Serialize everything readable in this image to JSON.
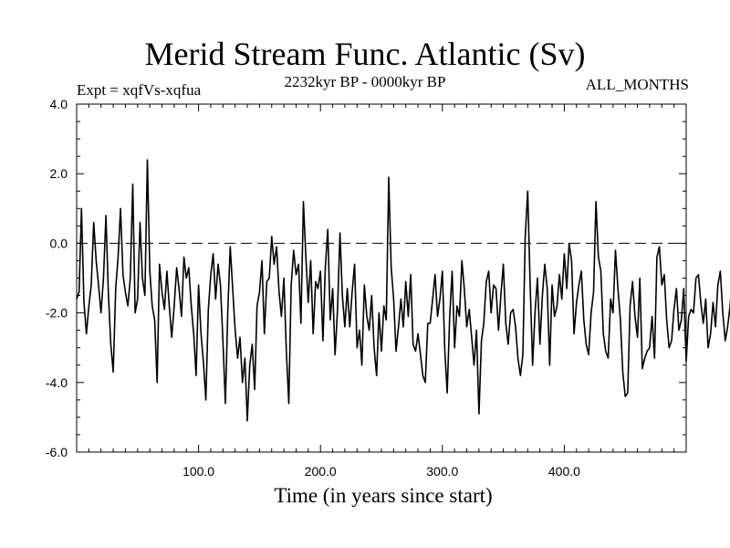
{
  "chart_data": {
    "type": "line",
    "title": "Merid Stream Func. Atlantic (Sv)",
    "subtitle_left": "Expt = xqfVs-xqfua",
    "subtitle_center": "2232kyr BP - 0000kyr BP",
    "subtitle_right": "ALL_MONTHS",
    "xlabel": "Time (in years since start)",
    "ylabel": "",
    "xlim": [
      0,
      500
    ],
    "ylim": [
      -6.0,
      4.0
    ],
    "x_ticks": [
      100,
      200,
      300,
      400
    ],
    "x_tick_labels": [
      "100.0",
      "200.0",
      "300.0",
      "400.0"
    ],
    "y_ticks": [
      -6,
      -4,
      -2,
      0,
      2,
      4
    ],
    "y_tick_labels": [
      "-6.0",
      "-4.0",
      "-2.0",
      "0.0",
      "2.0",
      "4.0"
    ],
    "reference_line": {
      "y": 0.0,
      "style": "dashed"
    },
    "series": [
      {
        "name": "xqfVs-xqfua",
        "x_start": 0,
        "x_step": 2,
        "values": [
          -1.6,
          -1.4,
          1.0,
          -1.7,
          -2.6,
          -1.8,
          -1.2,
          0.6,
          -0.5,
          -1.2,
          -2.0,
          -1.0,
          0.8,
          -1.4,
          -2.9,
          -3.7,
          -1.3,
          -0.4,
          1.0,
          -0.9,
          -1.4,
          -1.8,
          -1.0,
          1.7,
          -2.0,
          -1.6,
          0.6,
          -1.0,
          -1.5,
          2.4,
          -0.8,
          -1.8,
          -2.2,
          -4.0,
          -0.6,
          -1.4,
          -1.9,
          -0.8,
          -1.8,
          -2.7,
          -1.8,
          -0.7,
          -1.3,
          -2.1,
          -0.4,
          -1.0,
          -0.7,
          -1.8,
          -2.6,
          -3.8,
          -1.2,
          -2.6,
          -3.4,
          -4.5,
          -1.9,
          -0.9,
          -0.3,
          -1.6,
          -0.6,
          -1.2,
          -2.8,
          -4.6,
          -1.9,
          -0.1,
          -1.3,
          -2.5,
          -3.3,
          -2.7,
          -4.0,
          -3.3,
          -5.1,
          -3.5,
          -2.9,
          -4.2,
          -1.8,
          -1.4,
          -0.5,
          -2.6,
          -1.1,
          -1.0,
          0.2,
          -0.6,
          -0.1,
          -1.4,
          -2.1,
          -1.0,
          -3.1,
          -4.6,
          -1.2,
          -0.2,
          -0.9,
          -0.6,
          -2.3,
          1.2,
          -0.4,
          -1.7,
          -0.5,
          -2.6,
          -1.1,
          -1.3,
          -0.8,
          -2.8,
          -0.7,
          0.4,
          -2.2,
          -1.3,
          -3.2,
          -1.9,
          0.3,
          -1.5,
          -2.4,
          -1.3,
          -2.4,
          -1.4,
          -0.6,
          -3.0,
          -2.5,
          -3.5,
          -1.2,
          -2.1,
          -2.5,
          -1.5,
          -3.0,
          -3.8,
          -2.0,
          -3.1,
          -1.8,
          -2.2,
          1.9,
          -0.7,
          -1.6,
          -3.1,
          -2.4,
          -1.6,
          -2.4,
          -1.1,
          -2.1,
          -0.9,
          -2.9,
          -3.1,
          -2.6,
          -3.2,
          -3.8,
          -4.0,
          -2.3,
          -2.3,
          -1.6,
          -0.9,
          -2.1,
          -1.6,
          -0.8,
          -3.1,
          -4.3,
          -2.1,
          -0.8,
          -3.0,
          -1.8,
          -2.1,
          -0.5,
          -1.3,
          -2.4,
          -1.9,
          -2.7,
          -3.5,
          -2.5,
          -4.9,
          -2.8,
          -2.3,
          -1.1,
          -0.8,
          -2.0,
          -1.2,
          -1.3,
          -2.5,
          -1.5,
          -0.6,
          -2.3,
          -2.9,
          -2.0,
          -1.9,
          -2.4,
          -3.3,
          -3.8,
          -3.2,
          0.2,
          1.5,
          -1.2,
          -3.5,
          -2.0,
          -1.0,
          -2.9,
          -1.5,
          -0.6,
          -1.3,
          -3.5,
          -1.2,
          -2.1,
          -1.8,
          -0.9,
          -1.6,
          -0.3,
          -1.3,
          0.0,
          -0.5,
          -2.6,
          -1.7,
          -1.2,
          -0.8,
          -2.2,
          -2.9,
          -3.2,
          -2.0,
          -1.4,
          1.2,
          -0.4,
          -0.8,
          -2.6,
          -3.1,
          -3.3,
          -1.6,
          -2.0,
          -0.2,
          -1.3,
          -2.2,
          -3.7,
          -4.4,
          -4.3,
          -1.8,
          -1.1,
          -2.1,
          -2.7,
          -1.0,
          -3.6,
          -3.3,
          -3.1,
          -3.0,
          -2.1,
          -3.3,
          -0.4,
          -0.1,
          -1.2,
          -0.9,
          -2.2,
          -3.0,
          -2.8,
          -1.9,
          -1.3,
          -2.5,
          -2.2,
          -1.3,
          -3.4,
          -2.1,
          -1.9,
          -2.0,
          -1.0,
          -0.9,
          -1.7,
          -2.3,
          -1.6,
          -3.0,
          -2.6,
          -1.7,
          -2.4,
          -1.2,
          -0.8,
          -2.0,
          -2.8,
          -2.4,
          -1.8,
          -0.7,
          -3.4,
          -2.6,
          -1.7,
          -2.5,
          -2.4,
          -1.6,
          -1.6,
          -3.7,
          -2.2,
          -2.3,
          -2.1,
          -1.5,
          -2.8,
          -3.6,
          -1.7,
          -0.6,
          -1.0,
          -1.0,
          -2.0,
          -1.9,
          -2.6,
          -3.1,
          -4.6,
          -2.1,
          -1.7,
          -0.2,
          -2.1,
          -1.9,
          -2.8,
          -2.0,
          -2.4,
          -2.1,
          -3.9,
          -2.8,
          -3.0,
          -2.9,
          -4.0,
          -3.2,
          -2.6,
          -1.7,
          -2.3,
          -1.9,
          -3.4,
          -2.2,
          -3.2,
          -2.5,
          -2.6,
          -0.5,
          -2.6,
          -3.4,
          -3.5,
          -3.0,
          -2.9,
          -3.9,
          -2.2,
          -2.0,
          -1.0,
          -2.1,
          -3.0,
          -3.3,
          -1.8,
          -4.3,
          -2.6,
          -1.7,
          -2.6,
          -3.9,
          -3.3,
          -3.4,
          -2.7,
          -2.3,
          -1.8,
          -2.4,
          -3.3,
          -2.8,
          -2.1,
          -2.8,
          -2.5,
          -2.7,
          -3.6,
          -2.0,
          -1.4,
          -2.4,
          -2.6,
          -1.4,
          -2.5,
          -3.0,
          -2.0,
          -1.6,
          -1.8,
          -3.9,
          -1.9,
          -2.7,
          -3.1,
          -2.3,
          -2.0,
          -3.9,
          -2.7,
          -2.2,
          -2.3,
          -1.3,
          -2.1,
          -1.6,
          -1.4,
          -1.0,
          -2.6,
          -2.0,
          -2.8,
          -1.9,
          -1.0,
          -1.7,
          -2.5,
          -1.3,
          -0.6,
          -1.7,
          -2.6,
          -2.8,
          -2.3,
          -2.1,
          -2.4,
          -2.2,
          -2.6,
          -2.1,
          -2.7,
          -2.8,
          -1.9,
          -2.3,
          -2.2,
          -1.8,
          -1.6,
          -2.3,
          -3.3,
          -1.8,
          -2.8,
          -2.1,
          -1.4,
          -2.2,
          -2.4,
          -2.8,
          -2.1,
          -2.7,
          -2.8,
          -2.4,
          -2.3,
          -2.2,
          -2.8,
          -2.2,
          -2.3,
          -2.6,
          -2.9,
          -2.5,
          -2.1,
          -1.9,
          -2.4,
          -2.5,
          -2.4,
          -2.1,
          -2.0,
          -2.2,
          -2.4,
          -1.8,
          -2.4,
          -2.6,
          -2.0,
          -2.7,
          -2.5,
          -1.8,
          -2.3,
          -2.2,
          -2.7,
          -2.1,
          -1.9,
          -2.2,
          -2.6,
          -2.7,
          -2.3,
          -2.2,
          -2.0,
          -2.2,
          -2.4,
          -2.4,
          -2.2,
          -2.0
        ]
      }
    ]
  }
}
